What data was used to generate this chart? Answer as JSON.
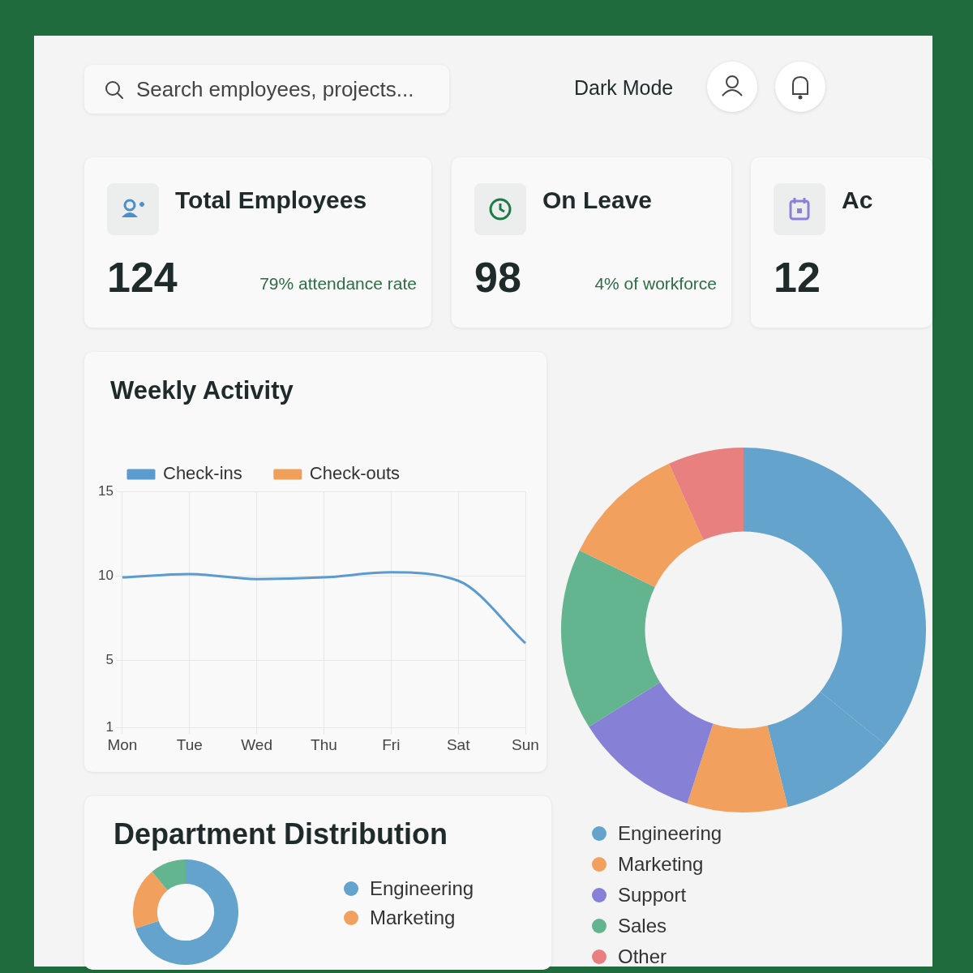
{
  "chart_data": [
    {
      "type": "other",
      "annotations": [
        "Search employees, projects...",
        "Dark Mode"
      ]
    },
    {
      "type": "other",
      "title": "Total Employees",
      "annotations": [
        "124",
        "79% attendance rate"
      ]
    },
    {
      "type": "other",
      "title": "On Leave",
      "annotations": [
        "98",
        "4% of workforce"
      ]
    },
    {
      "type": "other",
      "title": "Ac",
      "annotations": [
        "12"
      ]
    },
    {
      "type": "line",
      "title": "Weekly Activity",
      "categories": [
        "Mon",
        "Tue",
        "Wed",
        "Thu",
        "Fri",
        "Sat",
        "Sun"
      ],
      "series": [
        {
          "name": "Check-ins",
          "color": "#5b9bd0",
          "values": [
            9.9,
            10.1,
            9.8,
            9.9,
            10.2,
            9.7,
            6
          ]
        },
        {
          "name": "Check-outs",
          "color": "#f0a05a",
          "values": [
            null,
            null,
            null,
            null,
            null,
            null,
            null
          ]
        }
      ],
      "ylim": [
        1,
        15
      ],
      "yticks": [
        1,
        5,
        10,
        15
      ],
      "grid": true,
      "legend": "top",
      "marker": "none"
    },
    {
      "type": "donut",
      "categories": [
        "Engineering",
        null,
        "Marketing",
        "Support",
        "Sales",
        null,
        "Other"
      ],
      "values": [
        35.8,
        10.3,
        8.9,
        11.1,
        16.1,
        11.1,
        6.7
      ],
      "colors": [
        "#64a3cc",
        "#64a3cc",
        "#f2a05d",
        "#8680d6",
        "#63b58f",
        "#f2a05d",
        "#e88080"
      ],
      "legend": "bottom"
    },
    {
      "type": "donut",
      "title": "Department Distribution",
      "categories": [
        "Engineering",
        "Marketing",
        null
      ],
      "values": [
        70,
        19,
        11
      ],
      "colors": [
        "#64a3cc",
        "#f2a05d",
        "#63b58f"
      ],
      "legend": "right"
    }
  ]
}
